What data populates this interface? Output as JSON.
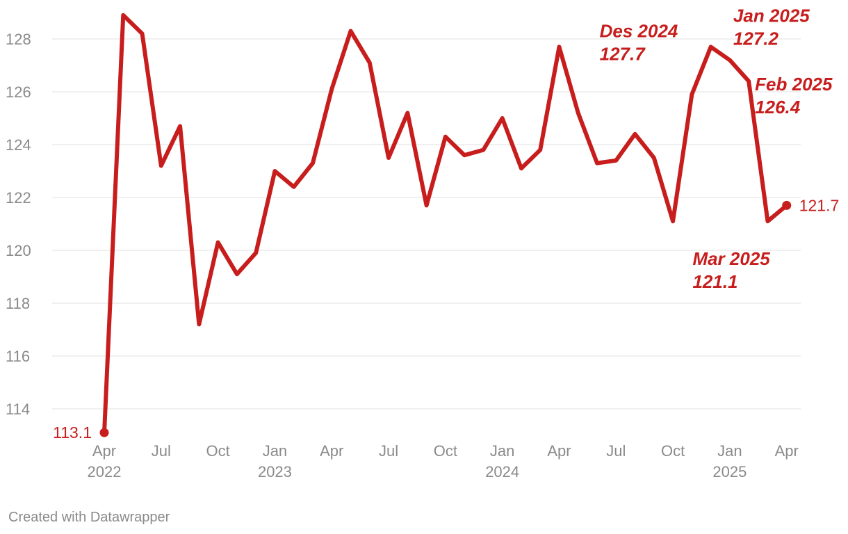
{
  "chart_data": {
    "type": "line",
    "ylim": [
      113,
      129
    ],
    "yticks": [
      114,
      116,
      118,
      120,
      122,
      124,
      126,
      128
    ],
    "grid": true,
    "series": [
      {
        "color": "#c71e1d",
        "x": [
          "2022-04",
          "2022-05",
          "2022-06",
          "2022-07",
          "2022-08",
          "2022-09",
          "2022-10",
          "2022-11",
          "2022-12",
          "2023-01",
          "2023-02",
          "2023-03",
          "2023-04",
          "2023-05",
          "2023-06",
          "2023-07",
          "2023-08",
          "2023-09",
          "2023-10",
          "2023-11",
          "2023-12",
          "2024-01",
          "2024-02",
          "2024-03",
          "2024-04",
          "2024-05",
          "2024-06",
          "2024-07",
          "2024-08",
          "2024-09",
          "2024-10",
          "2024-11",
          "2024-12",
          "2025-01",
          "2025-02",
          "2025-03",
          "2025-04"
        ],
        "values": [
          113.1,
          128.9,
          128.2,
          123.2,
          124.7,
          117.2,
          120.3,
          119.1,
          119.9,
          123.0,
          122.4,
          123.3,
          126.1,
          128.3,
          127.1,
          123.5,
          125.2,
          121.7,
          124.3,
          123.6,
          123.8,
          125.0,
          123.1,
          123.8,
          127.7,
          125.2,
          123.3,
          123.4,
          124.4,
          123.5,
          121.1,
          125.9,
          127.7,
          127.2,
          126.4,
          121.1,
          121.7
        ]
      }
    ],
    "xtick_labels": [
      {
        "x": "2022-04",
        "month": "Apr",
        "year": "2022"
      },
      {
        "x": "2022-07",
        "month": "Jul",
        "year": ""
      },
      {
        "x": "2022-10",
        "month": "Oct",
        "year": ""
      },
      {
        "x": "2023-01",
        "month": "Jan",
        "year": "2023"
      },
      {
        "x": "2023-04",
        "month": "Apr",
        "year": ""
      },
      {
        "x": "2023-07",
        "month": "Jul",
        "year": ""
      },
      {
        "x": "2023-10",
        "month": "Oct",
        "year": ""
      },
      {
        "x": "2024-01",
        "month": "Jan",
        "year": "2024"
      },
      {
        "x": "2024-04",
        "month": "Apr",
        "year": ""
      },
      {
        "x": "2024-07",
        "month": "Jul",
        "year": ""
      },
      {
        "x": "2024-10",
        "month": "Oct",
        "year": ""
      },
      {
        "x": "2025-01",
        "month": "Jan",
        "year": "2025"
      },
      {
        "x": "2025-04",
        "month": "Apr",
        "year": ""
      }
    ],
    "end_labels": {
      "first": "113.1",
      "last": "121.7"
    },
    "annotations": [
      {
        "x": "2024-12",
        "line1": "Des 2024",
        "line2": "127.7"
      },
      {
        "x": "2025-01",
        "line1": "Jan 2025",
        "line2": "127.2"
      },
      {
        "x": "2025-02",
        "line1": "Feb 2025",
        "line2": "126.4"
      },
      {
        "x": "2025-03",
        "line1": "Mar 2025",
        "line2": "121.1"
      }
    ]
  },
  "footer": {
    "credit": "Created with Datawrapper"
  }
}
